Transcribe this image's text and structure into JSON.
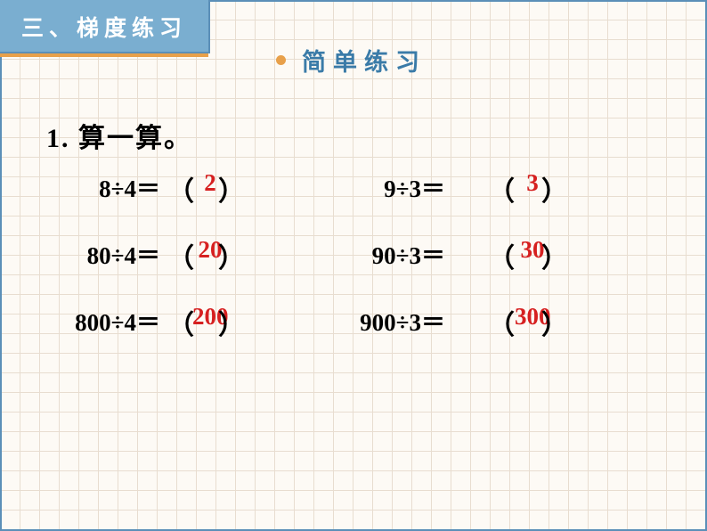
{
  "tab_title": "三、梯度练习",
  "subtitle": "简单练习",
  "problem_heading": "1. 算一算。",
  "answer_color": "#d62020",
  "rows": [
    {
      "left": {
        "expr": "8÷4＝",
        "answer": "2"
      },
      "right": {
        "expr": "9÷3＝",
        "answer": "3"
      }
    },
    {
      "left": {
        "expr": "80÷4＝",
        "answer": "20"
      },
      "right": {
        "expr": "90÷3＝",
        "answer": "30"
      }
    },
    {
      "left": {
        "expr": "800÷4＝",
        "answer": "200"
      },
      "right": {
        "expr": "900÷3＝",
        "answer": "300"
      }
    }
  ],
  "paren_left": "（",
  "paren_right": "）"
}
